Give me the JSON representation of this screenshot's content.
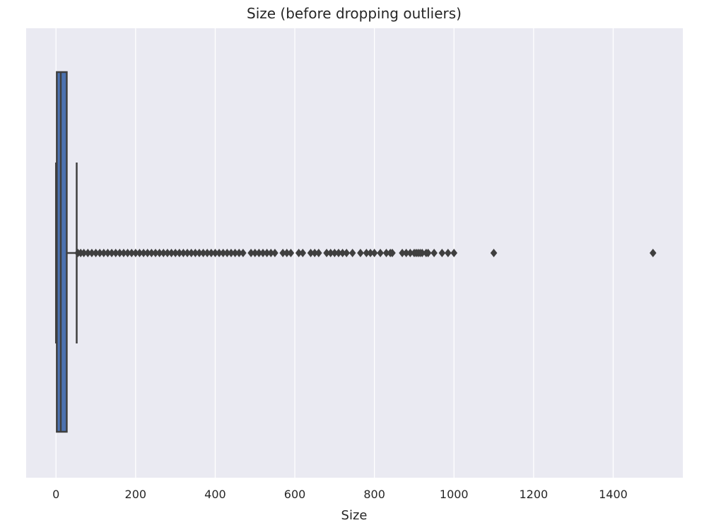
{
  "chart_data": {
    "type": "boxplot",
    "orientation": "horizontal",
    "title": "Size (before dropping outliers)",
    "xlabel": "Size",
    "ylabel": "",
    "xlim": [
      -75,
      1575
    ],
    "xticks": [
      0,
      200,
      400,
      600,
      800,
      1000,
      1200,
      1400
    ],
    "grid": true,
    "colors": {
      "background": "#eaeaf2",
      "grid": "#ffffff",
      "box": "#4c72b0",
      "line": "#3f3f3f"
    },
    "box": {
      "whisker_low": 0,
      "q1": 2,
      "median": 12,
      "q3": 27,
      "whisker_high": 52
    },
    "outliers": [
      55,
      62,
      70,
      80,
      90,
      100,
      110,
      120,
      130,
      140,
      150,
      160,
      170,
      180,
      190,
      200,
      210,
      220,
      230,
      240,
      250,
      260,
      270,
      280,
      290,
      300,
      310,
      320,
      330,
      340,
      350,
      360,
      370,
      380,
      390,
      400,
      410,
      420,
      430,
      440,
      450,
      460,
      470,
      490,
      500,
      510,
      520,
      530,
      540,
      550,
      570,
      580,
      590,
      610,
      620,
      640,
      650,
      660,
      680,
      690,
      700,
      710,
      720,
      730,
      745,
      765,
      780,
      790,
      800,
      815,
      830,
      840,
      845,
      870,
      880,
      890,
      900,
      905,
      910,
      915,
      920,
      930,
      935,
      950,
      970,
      985,
      1000,
      1100,
      1500
    ]
  }
}
